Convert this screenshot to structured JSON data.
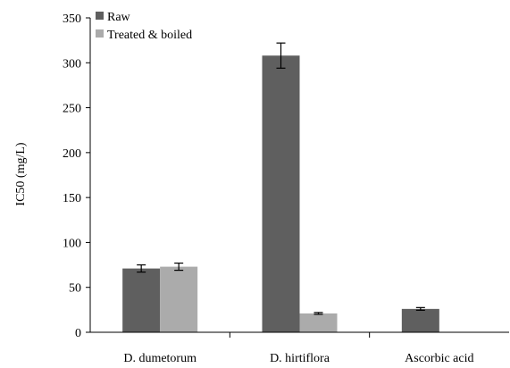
{
  "chart_data": {
    "type": "bar",
    "title": "",
    "xlabel": "",
    "ylabel": "IC50 (mg/L)",
    "ylim": [
      0,
      350
    ],
    "yticks": [
      0,
      50,
      100,
      150,
      200,
      250,
      300,
      350
    ],
    "grid": false,
    "legend_position": "top-left",
    "categories": [
      "D. dumetorum",
      "D. hirtiflora",
      "Ascorbic acid"
    ],
    "series": [
      {
        "name": "Raw",
        "color": "#5f5f5f",
        "values": [
          71,
          308,
          26
        ],
        "errors": [
          4,
          14,
          1.5
        ]
      },
      {
        "name": "Treated & boiled",
        "color": "#ababab",
        "values": [
          73,
          21,
          null
        ],
        "errors": [
          4,
          1,
          null
        ]
      }
    ]
  }
}
